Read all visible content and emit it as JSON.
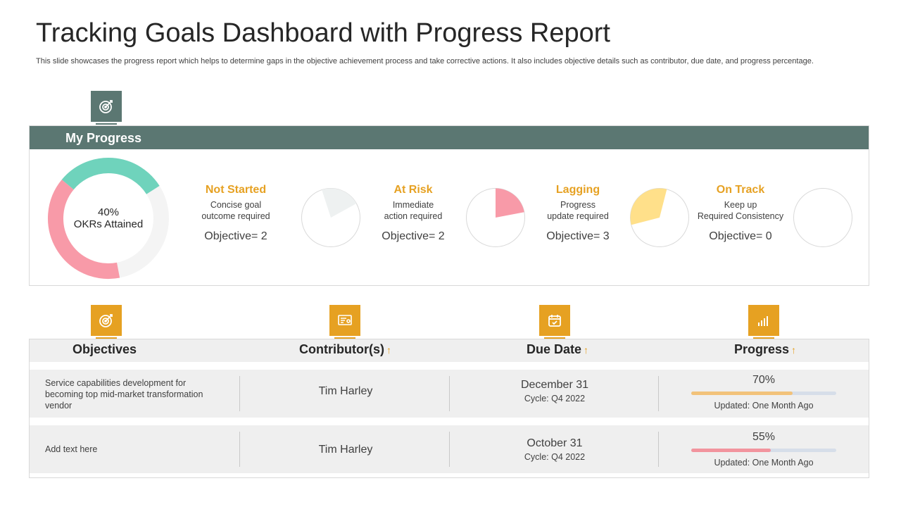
{
  "header": {
    "title": "Tracking Goals Dashboard with Progress Report",
    "subtitle": "This slide showcases the progress report which helps to determine gaps in the objective achievement process and take corrective actions. It also includes objective details such as contributor, due date, and progress percentage."
  },
  "my_progress": {
    "heading": "My Progress",
    "icon": "target-icon",
    "okr_percent": "40%",
    "okr_label": "OKRs Attained",
    "okr_value": 40,
    "statuses": [
      {
        "title": "Not Started",
        "desc_line1": "Concise goal",
        "desc_line2": "outcome required",
        "objective": "Objective= 2",
        "share": 0.22,
        "color": "#eef1f1"
      },
      {
        "title": "At Risk",
        "desc_line1": "Immediate",
        "desc_line2": "action required",
        "objective": "Objective= 2",
        "share": 0.22,
        "color": "#f89aa8"
      },
      {
        "title": "Lagging",
        "desc_line1": "Progress",
        "desc_line2": "update required",
        "objective": "Objective= 3",
        "share": 0.33,
        "color": "#ffe08a"
      },
      {
        "title": "On Track",
        "desc_line1": "Keep up",
        "desc_line2": "Required Consistency",
        "objective": "Objective= 0",
        "share": 0,
        "color": "#ffffff"
      }
    ]
  },
  "colors": {
    "header_bg": "#5b7772",
    "accent": "#e6a122",
    "donut_teal": "#6fd3bc",
    "donut_pink": "#f89aa8",
    "donut_track": "#f4f4f4",
    "bar_gold": "#f2c27a",
    "bar_pink": "#f2949e"
  },
  "table": {
    "columns": [
      {
        "label": "Objectives",
        "icon": "target-icon",
        "sortable": false
      },
      {
        "label": "Contributor(s)",
        "icon": "certificate-icon",
        "sortable": true
      },
      {
        "label": "Due Date",
        "icon": "calendar-icon",
        "sortable": true
      },
      {
        "label": "Progress",
        "icon": "bar-chart-icon",
        "sortable": true
      }
    ],
    "sort_arrow": "↑",
    "rows": [
      {
        "objective": "Service capabilities development  for becoming top mid-market transformation vendor",
        "contributor": "Tim Harley",
        "due_date": "December 31",
        "cycle": "Cycle: Q4 2022",
        "progress_label": "70%",
        "progress": 0.7,
        "updated": "Updated: One Month Ago"
      },
      {
        "objective": "Add text here",
        "contributor": "Tim Harley",
        "due_date": "October 31",
        "cycle": "Cycle: Q4 2022",
        "progress_label": "55%",
        "progress": 0.55,
        "updated": "Updated: One Month Ago"
      }
    ]
  }
}
